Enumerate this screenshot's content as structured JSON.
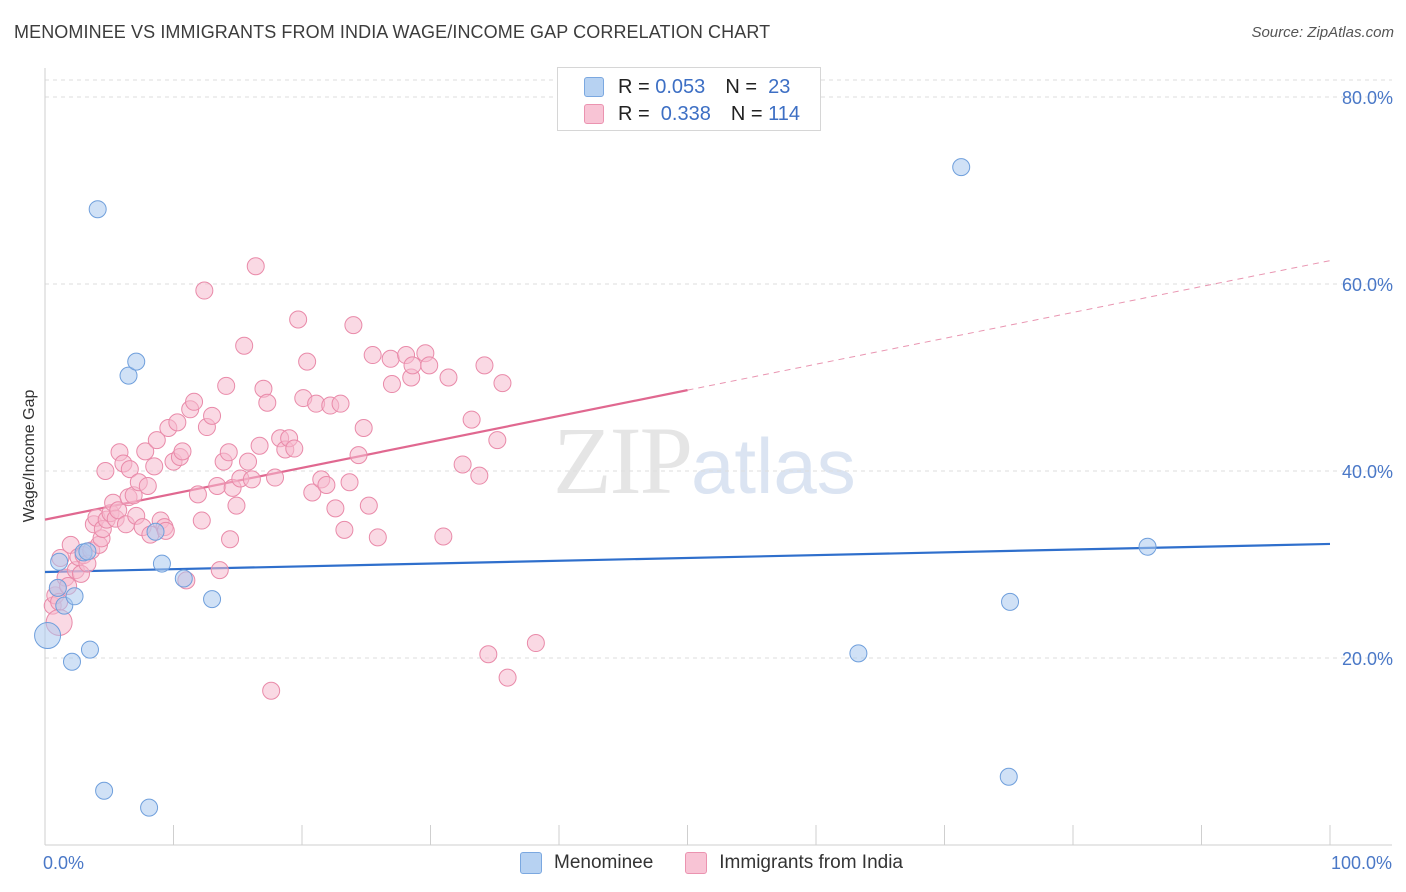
{
  "title": "MENOMINEE VS IMMIGRANTS FROM INDIA WAGE/INCOME GAP CORRELATION CHART",
  "source": "Source: ZipAtlas.com",
  "watermark": {
    "zip": "ZIP",
    "atlas": "atlas"
  },
  "legend": {
    "rows": [
      {
        "r_label": "R = ",
        "r_value": "0.053",
        "n_label": "N = ",
        "n_value": " 23"
      },
      {
        "r_label": "R = ",
        "r_value": " 0.338",
        "n_label": "N = ",
        "n_value": "114"
      }
    ]
  },
  "bottom_legend": [
    "Menominee",
    "Immigrants from India"
  ],
  "colors": {
    "menominee_fill": "#a9c8ee",
    "menominee_stroke": "#6f9fdc",
    "menominee_line": "#2f6fcc",
    "india_fill": "#f6b9cd",
    "india_stroke": "#e98aa9",
    "india_line": "#e06890",
    "grid": "#dedede",
    "axis_label": "#4a78c7"
  },
  "chart_data": {
    "type": "scatter",
    "title": "MENOMINEE VS IMMIGRANTS FROM INDIA WAGE/INCOME GAP CORRELATION CHART",
    "xlabel": "",
    "ylabel": "Wage/Income Gap",
    "xlim": [
      0,
      100
    ],
    "ylim": [
      0,
      80
    ],
    "x_tick_labels": [
      "0.0%",
      "100.0%"
    ],
    "y_tick_labels": [
      "20.0%",
      "40.0%",
      "60.0%",
      "80.0%"
    ],
    "y_ticks": [
      20,
      40,
      60,
      80
    ],
    "grid": true,
    "series": [
      {
        "name": "Menominee",
        "r": 0.053,
        "n": 23,
        "trend": {
          "x": [
            0,
            100
          ],
          "y": [
            29.2,
            32.2
          ],
          "solid_to": 100
        },
        "points": [
          [
            0.2,
            22.4
          ],
          [
            1.0,
            27.5
          ],
          [
            1.1,
            30.3
          ],
          [
            1.5,
            25.6
          ],
          [
            2.1,
            19.6
          ],
          [
            2.3,
            26.6
          ],
          [
            3.0,
            31.3
          ],
          [
            3.5,
            20.9
          ],
          [
            4.1,
            68.0
          ],
          [
            4.6,
            5.8
          ],
          [
            6.5,
            50.2
          ],
          [
            7.1,
            51.7
          ],
          [
            8.1,
            4.0
          ],
          [
            8.6,
            33.5
          ],
          [
            9.1,
            30.1
          ],
          [
            10.8,
            28.5
          ],
          [
            13.0,
            26.3
          ],
          [
            63.3,
            20.5
          ],
          [
            71.3,
            72.5
          ],
          [
            75.1,
            26.0
          ],
          [
            85.8,
            31.9
          ],
          [
            75.0,
            7.3
          ],
          [
            3.3,
            31.4
          ]
        ]
      },
      {
        "name": "Immigrants from India",
        "r": 0.338,
        "n": 114,
        "trend": {
          "x": [
            0,
            100
          ],
          "y": [
            34.8,
            62.5
          ],
          "solid_to": 50
        },
        "points": [
          [
            0.6,
            25.6
          ],
          [
            0.8,
            26.7
          ],
          [
            1.0,
            27.5
          ],
          [
            1.1,
            26.0
          ],
          [
            1.1,
            23.8
          ],
          [
            1.2,
            30.7
          ],
          [
            1.6,
            28.6
          ],
          [
            1.8,
            27.7
          ],
          [
            2.0,
            32.1
          ],
          [
            2.4,
            29.4
          ],
          [
            2.6,
            30.8
          ],
          [
            2.8,
            29.0
          ],
          [
            3.0,
            31.0
          ],
          [
            3.3,
            30.1
          ],
          [
            3.6,
            31.5
          ],
          [
            3.8,
            34.3
          ],
          [
            4.0,
            35.0
          ],
          [
            4.2,
            32.1
          ],
          [
            4.4,
            32.8
          ],
          [
            4.5,
            33.8
          ],
          [
            4.7,
            40.0
          ],
          [
            4.8,
            34.8
          ],
          [
            5.1,
            35.5
          ],
          [
            5.3,
            36.6
          ],
          [
            5.5,
            34.9
          ],
          [
            5.7,
            35.8
          ],
          [
            5.8,
            42.0
          ],
          [
            6.1,
            40.8
          ],
          [
            6.3,
            34.3
          ],
          [
            6.5,
            37.2
          ],
          [
            6.6,
            40.2
          ],
          [
            6.9,
            37.4
          ],
          [
            7.1,
            35.2
          ],
          [
            7.3,
            38.8
          ],
          [
            7.6,
            34.0
          ],
          [
            7.8,
            42.1
          ],
          [
            8.0,
            38.4
          ],
          [
            8.2,
            33.2
          ],
          [
            8.5,
            40.5
          ],
          [
            8.7,
            43.3
          ],
          [
            9.0,
            34.7
          ],
          [
            9.3,
            34.0
          ],
          [
            9.6,
            44.6
          ],
          [
            10.0,
            41.0
          ],
          [
            10.3,
            45.2
          ],
          [
            10.5,
            41.5
          ],
          [
            10.7,
            42.1
          ],
          [
            11.0,
            28.3
          ],
          [
            11.3,
            46.6
          ],
          [
            11.6,
            47.4
          ],
          [
            11.9,
            37.5
          ],
          [
            12.2,
            34.7
          ],
          [
            12.4,
            59.3
          ],
          [
            12.6,
            44.7
          ],
          [
            13.0,
            45.9
          ],
          [
            13.4,
            38.4
          ],
          [
            13.6,
            29.4
          ],
          [
            13.9,
            41.0
          ],
          [
            14.1,
            49.1
          ],
          [
            14.3,
            42.0
          ],
          [
            14.6,
            38.2
          ],
          [
            14.9,
            36.3
          ],
          [
            15.2,
            39.2
          ],
          [
            15.5,
            53.4
          ],
          [
            15.8,
            41.0
          ],
          [
            16.1,
            39.1
          ],
          [
            16.4,
            61.9
          ],
          [
            16.7,
            42.7
          ],
          [
            17.0,
            48.8
          ],
          [
            17.3,
            47.3
          ],
          [
            17.6,
            16.5
          ],
          [
            17.9,
            39.3
          ],
          [
            18.3,
            43.5
          ],
          [
            18.7,
            42.3
          ],
          [
            19.0,
            43.5
          ],
          [
            19.4,
            42.4
          ],
          [
            19.7,
            56.2
          ],
          [
            20.1,
            47.8
          ],
          [
            20.4,
            51.7
          ],
          [
            20.8,
            37.7
          ],
          [
            21.1,
            47.2
          ],
          [
            21.5,
            39.1
          ],
          [
            21.9,
            38.5
          ],
          [
            22.2,
            47.0
          ],
          [
            22.6,
            36.0
          ],
          [
            23.0,
            47.2
          ],
          [
            23.3,
            33.7
          ],
          [
            23.7,
            38.8
          ],
          [
            24.0,
            55.6
          ],
          [
            24.4,
            41.7
          ],
          [
            24.8,
            44.6
          ],
          [
            25.2,
            36.3
          ],
          [
            25.5,
            52.4
          ],
          [
            25.9,
            32.9
          ],
          [
            26.9,
            52.0
          ],
          [
            27.0,
            49.3
          ],
          [
            28.1,
            52.4
          ],
          [
            28.5,
            50.0
          ],
          [
            28.6,
            51.3
          ],
          [
            29.6,
            52.6
          ],
          [
            29.9,
            51.3
          ],
          [
            31.0,
            33.0
          ],
          [
            31.4,
            50.0
          ],
          [
            32.5,
            40.7
          ],
          [
            33.2,
            45.5
          ],
          [
            33.8,
            39.5
          ],
          [
            34.2,
            51.3
          ],
          [
            34.5,
            20.4
          ],
          [
            35.2,
            43.3
          ],
          [
            35.6,
            49.4
          ],
          [
            36.0,
            17.9
          ],
          [
            38.2,
            21.6
          ],
          [
            14.4,
            32.7
          ],
          [
            9.4,
            33.6
          ]
        ]
      }
    ]
  }
}
